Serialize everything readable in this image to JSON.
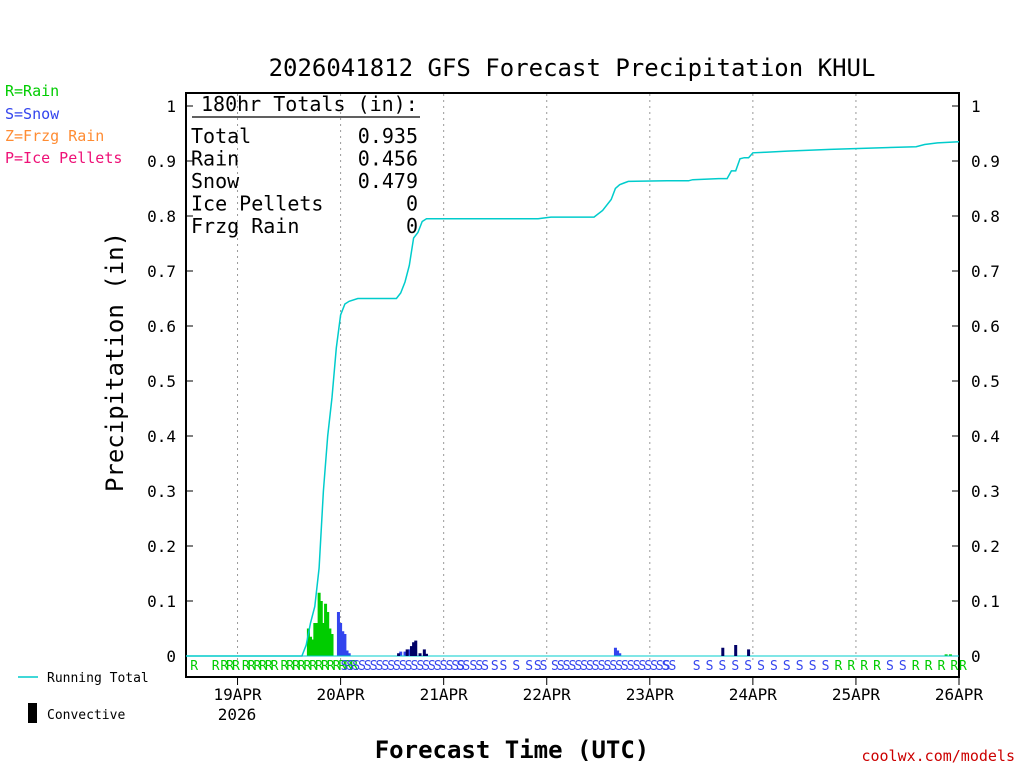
{
  "chart_data": {
    "type": "line",
    "title": "2026041812 GFS Forecast Precipitation KHUL",
    "ylabel": "Precipitation (in)",
    "xlabel": "Forecast Time (UTC)",
    "ylim": [
      0,
      1.0
    ],
    "xlim_hours": [
      0,
      180
    ],
    "y_ticks": [
      "0",
      "0.1",
      "0.2",
      "0.3",
      "0.4",
      "0.5",
      "0.6",
      "0.7",
      "0.8",
      "0.9",
      "1"
    ],
    "x_ticks": [
      {
        "hour": 12,
        "label": "19APR"
      },
      {
        "hour": 36,
        "label": "20APR"
      },
      {
        "hour": 60,
        "label": "21APR"
      },
      {
        "hour": 84,
        "label": "22APR"
      },
      {
        "hour": 108,
        "label": "23APR"
      },
      {
        "hour": 132,
        "label": "24APR"
      },
      {
        "hour": 156,
        "label": "25APR"
      },
      {
        "hour": 180,
        "label": "26APR"
      }
    ],
    "year_label": "2026",
    "legend_types": [
      {
        "label": "R=Rain",
        "color": "#00cc00"
      },
      {
        "label": "S=Snow",
        "color": "#3344ee"
      },
      {
        "label": "Z=Frzg Rain",
        "color": "#ff8c33"
      },
      {
        "label": "P=Ice Pellets",
        "color": "#ee1177"
      }
    ],
    "legend_series": {
      "running_total": "Running Total",
      "convective": "Convective"
    },
    "totals": {
      "header": "180hr Totals (in):",
      "rows": [
        {
          "label": "Total",
          "value": "0.935"
        },
        {
          "label": "Rain",
          "value": "0.456"
        },
        {
          "label": "Snow",
          "value": "0.479"
        },
        {
          "label": "Ice Pellets",
          "value": "0"
        },
        {
          "label": "Frzg Rain",
          "value": "0"
        }
      ]
    },
    "running_total": {
      "name": "Running Total",
      "color": "#00cccc",
      "points": [
        [
          0,
          0
        ],
        [
          27,
          0
        ],
        [
          28,
          0.02
        ],
        [
          29,
          0.06
        ],
        [
          30,
          0.09
        ],
        [
          31,
          0.16
        ],
        [
          32,
          0.3
        ],
        [
          33,
          0.4
        ],
        [
          34,
          0.47
        ],
        [
          35,
          0.56
        ],
        [
          36,
          0.62
        ],
        [
          37,
          0.64
        ],
        [
          38,
          0.645
        ],
        [
          40,
          0.65
        ],
        [
          49,
          0.65
        ],
        [
          50,
          0.66
        ],
        [
          51,
          0.68
        ],
        [
          52,
          0.71
        ],
        [
          53,
          0.76
        ],
        [
          54,
          0.77
        ],
        [
          55,
          0.79
        ],
        [
          56,
          0.795
        ],
        [
          57,
          0.795
        ],
        [
          70,
          0.795
        ],
        [
          82,
          0.795
        ],
        [
          84,
          0.797
        ],
        [
          85,
          0.798
        ],
        [
          95,
          0.798
        ],
        [
          97,
          0.81
        ],
        [
          99,
          0.83
        ],
        [
          100,
          0.85
        ],
        [
          101,
          0.857
        ],
        [
          102,
          0.86
        ],
        [
          103,
          0.863
        ],
        [
          112,
          0.864
        ],
        [
          117,
          0.864
        ],
        [
          118,
          0.866
        ],
        [
          124,
          0.868
        ],
        [
          126,
          0.868
        ],
        [
          127,
          0.882
        ],
        [
          128,
          0.882
        ],
        [
          129,
          0.904
        ],
        [
          130,
          0.906
        ],
        [
          131,
          0.906
        ],
        [
          132,
          0.915
        ],
        [
          135,
          0.916
        ],
        [
          140,
          0.918
        ],
        [
          150,
          0.921
        ],
        [
          170,
          0.926
        ],
        [
          172,
          0.93
        ],
        [
          175,
          0.933
        ],
        [
          180,
          0.935
        ]
      ]
    },
    "bars": [
      {
        "hour": 28.5,
        "value": 0.05,
        "type": "rain"
      },
      {
        "hour": 29,
        "value": 0.035,
        "type": "rain"
      },
      {
        "hour": 29.5,
        "value": 0.03,
        "type": "rain"
      },
      {
        "hour": 30,
        "value": 0.06,
        "type": "rain"
      },
      {
        "hour": 30.5,
        "value": 0.06,
        "type": "rain"
      },
      {
        "hour": 31,
        "value": 0.115,
        "type": "rain"
      },
      {
        "hour": 31.5,
        "value": 0.1,
        "type": "rain"
      },
      {
        "hour": 32,
        "value": 0.06,
        "type": "rain"
      },
      {
        "hour": 32.5,
        "value": 0.095,
        "type": "rain"
      },
      {
        "hour": 33,
        "value": 0.08,
        "type": "rain"
      },
      {
        "hour": 33.5,
        "value": 0.05,
        "type": "rain"
      },
      {
        "hour": 34,
        "value": 0.04,
        "type": "rain"
      },
      {
        "hour": 35.5,
        "value": 0.08,
        "type": "snow"
      },
      {
        "hour": 36,
        "value": 0.06,
        "type": "snow"
      },
      {
        "hour": 36.5,
        "value": 0.045,
        "type": "snow"
      },
      {
        "hour": 37,
        "value": 0.04,
        "type": "snow"
      },
      {
        "hour": 37.5,
        "value": 0.01,
        "type": "snow"
      },
      {
        "hour": 38,
        "value": 0.005,
        "type": "snow"
      },
      {
        "hour": 50,
        "value": 0.008,
        "type": "snow"
      },
      {
        "hour": 51,
        "value": 0.008,
        "type": "snow"
      },
      {
        "hour": 52,
        "value": 0.012,
        "type": "snow"
      },
      {
        "hour": 100,
        "value": 0.015,
        "type": "snow"
      },
      {
        "hour": 100.5,
        "value": 0.01,
        "type": "snow"
      },
      {
        "hour": 101,
        "value": 0.005,
        "type": "snow"
      },
      {
        "hour": 177,
        "value": 0.003,
        "type": "rain"
      },
      {
        "hour": 178,
        "value": 0.003,
        "type": "rain"
      }
    ],
    "convective_bars": [
      {
        "hour": 49.5,
        "value": 0.005
      },
      {
        "hour": 51.5,
        "value": 0.012
      },
      {
        "hour": 52.5,
        "value": 0.018
      },
      {
        "hour": 53,
        "value": 0.025
      },
      {
        "hour": 53.5,
        "value": 0.028
      },
      {
        "hour": 54.5,
        "value": 0.005
      },
      {
        "hour": 55.5,
        "value": 0.012
      },
      {
        "hour": 56,
        "value": 0.004
      },
      {
        "hour": 125,
        "value": 0.015
      },
      {
        "hour": 128,
        "value": 0.02
      },
      {
        "hour": 131,
        "value": 0.012
      }
    ],
    "ptype_markers": [
      {
        "hour": 1,
        "label": "R",
        "type": "rain"
      },
      {
        "hour": 6,
        "label": "R",
        "type": "rain"
      },
      {
        "hour": 8,
        "label": "RRR",
        "type": "rain"
      },
      {
        "hour": 13,
        "label": "RRR",
        "type": "rain"
      },
      {
        "hour": 17,
        "label": "RRR",
        "type": "rain"
      },
      {
        "hour": 22,
        "label": "RRR",
        "type": "rain"
      },
      {
        "hour": 26,
        "label": "RRRRRRRRRR",
        "type": "rain"
      },
      {
        "hour": 36,
        "label": "SSSSSSSSSSSSSSSSSSSSS",
        "type": "snow"
      },
      {
        "hour": 63,
        "label": "SS",
        "type": "snow"
      },
      {
        "hour": 66,
        "label": "SSS",
        "type": "snow"
      },
      {
        "hour": 71,
        "label": "S",
        "type": "snow"
      },
      {
        "hour": 73,
        "label": "S",
        "type": "snow"
      },
      {
        "hour": 76,
        "label": "S",
        "type": "snow"
      },
      {
        "hour": 79,
        "label": "S",
        "type": "snow"
      },
      {
        "hour": 81,
        "label": "SS",
        "type": "snow"
      },
      {
        "hour": 85,
        "label": "SSSSSSSSSSSSSSSSSSSS",
        "type": "snow"
      },
      {
        "hour": 111,
        "label": "SS",
        "type": "snow"
      },
      {
        "hour": 118,
        "label": "S",
        "type": "snow"
      },
      {
        "hour": 121,
        "label": "S",
        "type": "snow"
      },
      {
        "hour": 124,
        "label": "S",
        "type": "snow"
      },
      {
        "hour": 127,
        "label": "S",
        "type": "snow"
      },
      {
        "hour": 130,
        "label": "S",
        "type": "snow"
      },
      {
        "hour": 133,
        "label": "S",
        "type": "snow"
      },
      {
        "hour": 136,
        "label": "S",
        "type": "snow"
      },
      {
        "hour": 139,
        "label": "S",
        "type": "snow"
      },
      {
        "hour": 142,
        "label": "S",
        "type": "snow"
      },
      {
        "hour": 145,
        "label": "S",
        "type": "snow"
      },
      {
        "hour": 148,
        "label": "S",
        "type": "snow"
      },
      {
        "hour": 151,
        "label": "R",
        "type": "rain"
      },
      {
        "hour": 154,
        "label": "R",
        "type": "rain"
      },
      {
        "hour": 157,
        "label": "R",
        "type": "rain"
      },
      {
        "hour": 160,
        "label": "R",
        "type": "rain"
      },
      {
        "hour": 163,
        "label": "S",
        "type": "snow"
      },
      {
        "hour": 166,
        "label": "S",
        "type": "snow"
      },
      {
        "hour": 169,
        "label": "R",
        "type": "rain"
      },
      {
        "hour": 172,
        "label": "R",
        "type": "rain"
      },
      {
        "hour": 175,
        "label": "R",
        "type": "rain"
      },
      {
        "hour": 178,
        "label": "R",
        "type": "rain"
      },
      {
        "hour": 180,
        "label": "R",
        "type": "rain"
      }
    ],
    "colors": {
      "rain": "#00cc00",
      "snow": "#3344ee",
      "convective": "#000066",
      "credit": "#cc0000"
    }
  },
  "credit": "coolwx.com/models"
}
